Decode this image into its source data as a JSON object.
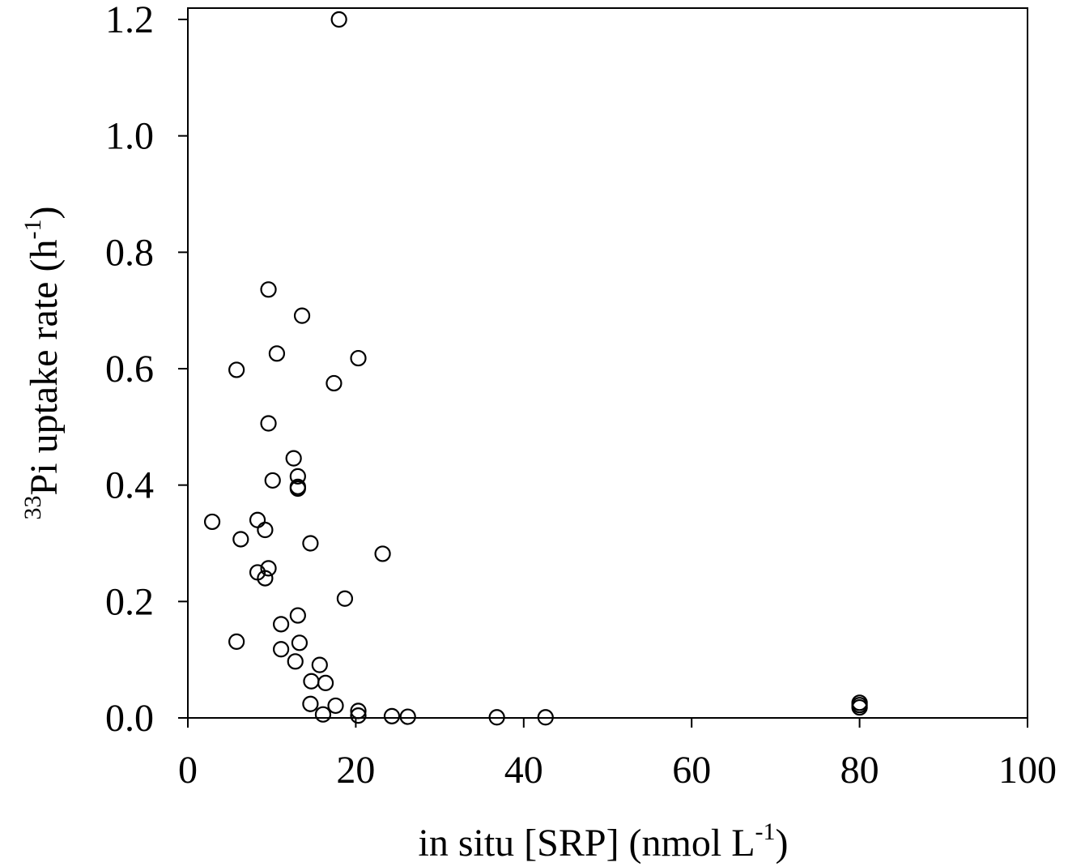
{
  "chart_data": {
    "type": "scatter",
    "title": "",
    "xlabel": {
      "main": "in situ [SRP] (nmol L",
      "sup": "-1",
      "tail": ")"
    },
    "ylabel": {
      "pre_sup": "33",
      "main": "Pi uptake rate (h",
      "sup": "-1",
      "tail": ")"
    },
    "xlim": [
      0,
      100
    ],
    "ylim": [
      0,
      1.2
    ],
    "x_ticks": [
      0,
      20,
      40,
      60,
      80,
      100
    ],
    "x_tick_labels": [
      "0",
      "20",
      "40",
      "60",
      "80",
      "100"
    ],
    "y_ticks": [
      0,
      0.2,
      0.4,
      0.6,
      0.8,
      1.0,
      1.2
    ],
    "y_tick_labels": [
      "0.0",
      "0.2",
      "0.4",
      "0.6",
      "0.8",
      "1.0",
      "1.2"
    ],
    "grid": false,
    "marker": "open-circle",
    "marker_color": "#000000",
    "series": [
      {
        "x": [
          18.0,
          9.6,
          13.6,
          10.6,
          5.8,
          20.3,
          17.4,
          9.6,
          12.6,
          13.1,
          10.1,
          13.1,
          13.1,
          2.9,
          8.3,
          9.2,
          6.3,
          14.6,
          23.2,
          9.6,
          8.3,
          9.2,
          18.7,
          13.1,
          11.1,
          5.8,
          13.3,
          11.1,
          12.8,
          15.7,
          14.7,
          16.4,
          14.6,
          17.6,
          16.1,
          20.3,
          20.3,
          24.3,
          26.2,
          36.8,
          42.6,
          80.0,
          80.0,
          80.0
        ],
        "y": [
          1.2,
          0.736,
          0.691,
          0.626,
          0.598,
          0.618,
          0.575,
          0.506,
          0.446,
          0.415,
          0.408,
          0.397,
          0.394,
          0.337,
          0.34,
          0.323,
          0.307,
          0.3,
          0.282,
          0.257,
          0.25,
          0.24,
          0.205,
          0.176,
          0.161,
          0.131,
          0.129,
          0.118,
          0.097,
          0.091,
          0.063,
          0.06,
          0.024,
          0.021,
          0.006,
          0.012,
          0.004,
          0.003,
          0.002,
          0.001,
          0.001,
          0.026,
          0.022,
          0.018
        ]
      }
    ]
  }
}
